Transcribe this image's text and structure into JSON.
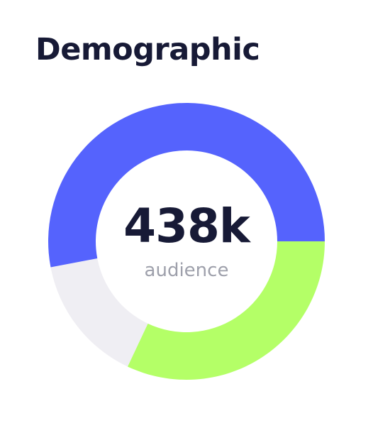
{
  "title": "Demographic",
  "center": {
    "value": "438k",
    "label": "audience"
  },
  "chart_data": {
    "type": "pie",
    "variant": "donut",
    "start": "3 o'clock, clockwise",
    "slices": [
      {
        "value": 0.32,
        "color": "#b4ff67"
      },
      {
        "value": 0.15,
        "color": "#efeef3"
      },
      {
        "value": 0.53,
        "color": "#5563fd"
      }
    ]
  }
}
